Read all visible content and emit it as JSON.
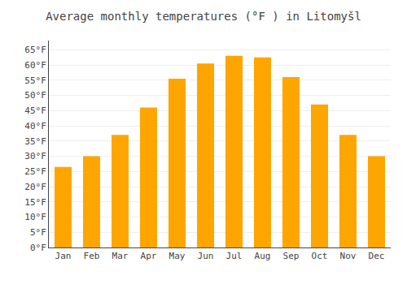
{
  "chart_data": {
    "type": "bar",
    "title": "Average monthly temperatures (°F ) in Litomyšl",
    "categories": [
      "Jan",
      "Feb",
      "Mar",
      "Apr",
      "May",
      "Jun",
      "Jul",
      "Aug",
      "Sep",
      "Oct",
      "Nov",
      "Dec"
    ],
    "values": [
      26.5,
      30.0,
      37.0,
      46.0,
      55.5,
      60.5,
      63.0,
      62.5,
      56.0,
      47.0,
      37.0,
      30.0
    ],
    "color": "#FFA500",
    "ylim": [
      0,
      68
    ],
    "yticks": [
      {
        "value": 0,
        "label": "0°F"
      },
      {
        "value": 5,
        "label": "5°F"
      },
      {
        "value": 10,
        "label": "10°F"
      },
      {
        "value": 15,
        "label": "15°F"
      },
      {
        "value": 20,
        "label": "20°F"
      },
      {
        "value": 25,
        "label": "25°F"
      },
      {
        "value": 30,
        "label": "30°F"
      },
      {
        "value": 35,
        "label": "35°F"
      },
      {
        "value": 40,
        "label": "40°F"
      },
      {
        "value": 45,
        "label": "45°F"
      },
      {
        "value": 50,
        "label": "50°F"
      },
      {
        "value": 55,
        "label": "55°F"
      },
      {
        "value": 60,
        "label": "60°F"
      },
      {
        "value": 65,
        "label": "65°F"
      }
    ],
    "grid": true
  }
}
